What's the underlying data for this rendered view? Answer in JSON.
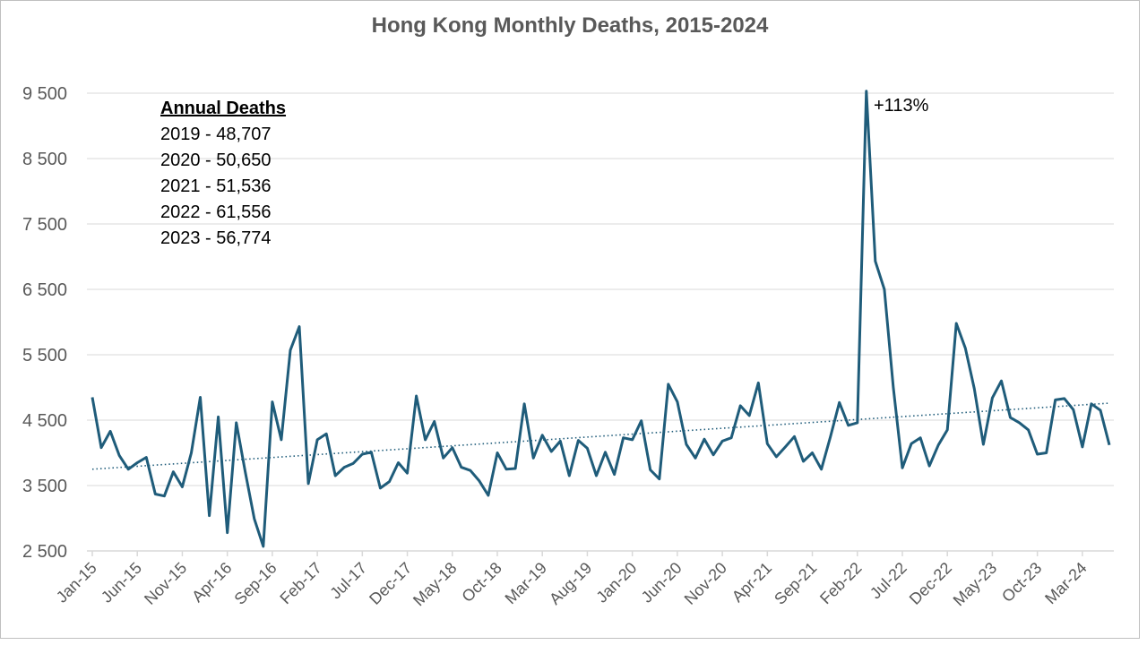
{
  "chart_data": {
    "type": "line",
    "title": "Hong Kong Monthly Deaths, 2015-2024",
    "xlabel": "",
    "ylabel": "",
    "ylim": [
      2500,
      9500
    ],
    "yticks": [
      "2 500",
      "3 500",
      "4 500",
      "5 500",
      "6 500",
      "7 500",
      "8 500",
      "9 500"
    ],
    "ytick_values": [
      2500,
      3500,
      4500,
      5500,
      6500,
      7500,
      8500,
      9500
    ],
    "xtick_labels": [
      "Jan-15",
      "Jun-15",
      "Nov-15",
      "Apr-16",
      "Sep-16",
      "Feb-17",
      "Jul-17",
      "Dec-17",
      "May-18",
      "Oct-18",
      "Mar-19",
      "Aug-19",
      "Jan-20",
      "Jun-20",
      "Nov-20",
      "Apr-21",
      "Sep-21",
      "Feb-22",
      "Jul-22",
      "Dec-22",
      "May-23",
      "Oct-23",
      "Mar-24"
    ],
    "xtick_every": 5,
    "grid": true,
    "trendline": {
      "style": "dotted",
      "type": "linear",
      "start": 3750,
      "end": 4760
    },
    "series": [
      {
        "values": [
          4850,
          4080,
          4330,
          3960,
          3750,
          3850,
          3930,
          3370,
          3340,
          3710,
          3480,
          4000,
          4850,
          3040,
          4550,
          2780,
          4460,
          3700,
          2990,
          2570,
          4780,
          4200,
          5570,
          5930,
          3530,
          4200,
          4290,
          3650,
          3780,
          3840,
          3980,
          4010,
          3460,
          3560,
          3850,
          3690,
          4870,
          4200,
          4480,
          3920,
          4080,
          3780,
          3730,
          3570,
          3350,
          4000,
          3750,
          3760,
          4750,
          3920,
          4270,
          4020,
          4180,
          3650,
          4190,
          4070,
          3650,
          4010,
          3670,
          4230,
          4200,
          4490,
          3740,
          3600,
          5050,
          4780,
          4130,
          3920,
          4210,
          3970,
          4180,
          4230,
          4720,
          4570,
          5070,
          4140,
          3940,
          4090,
          4250,
          3870,
          4000,
          3750,
          4240,
          4770,
          4420,
          4460,
          9530,
          6930,
          6500,
          5000,
          3770,
          4140,
          4230,
          3800,
          4120,
          4350,
          5980,
          5600,
          4980,
          4130,
          4840,
          5100,
          4540,
          4460,
          4350,
          3980,
          4000,
          4810,
          4830,
          4660,
          4090,
          4750,
          4650,
          4120
        ]
      }
    ],
    "annotations": {
      "peak_label": "+113%",
      "annual_deaths_title": "Annual Deaths",
      "annual_deaths_lines": [
        "2019 - 48,707",
        "2020 - 50,650",
        "2021 - 51,536",
        "2022 - 61,556",
        "2023 - 56,774"
      ]
    },
    "colors": {
      "line": "#1f5c7a",
      "trend": "#1f5c7a",
      "grid": "#d9d9d9",
      "text": "#595959"
    }
  }
}
